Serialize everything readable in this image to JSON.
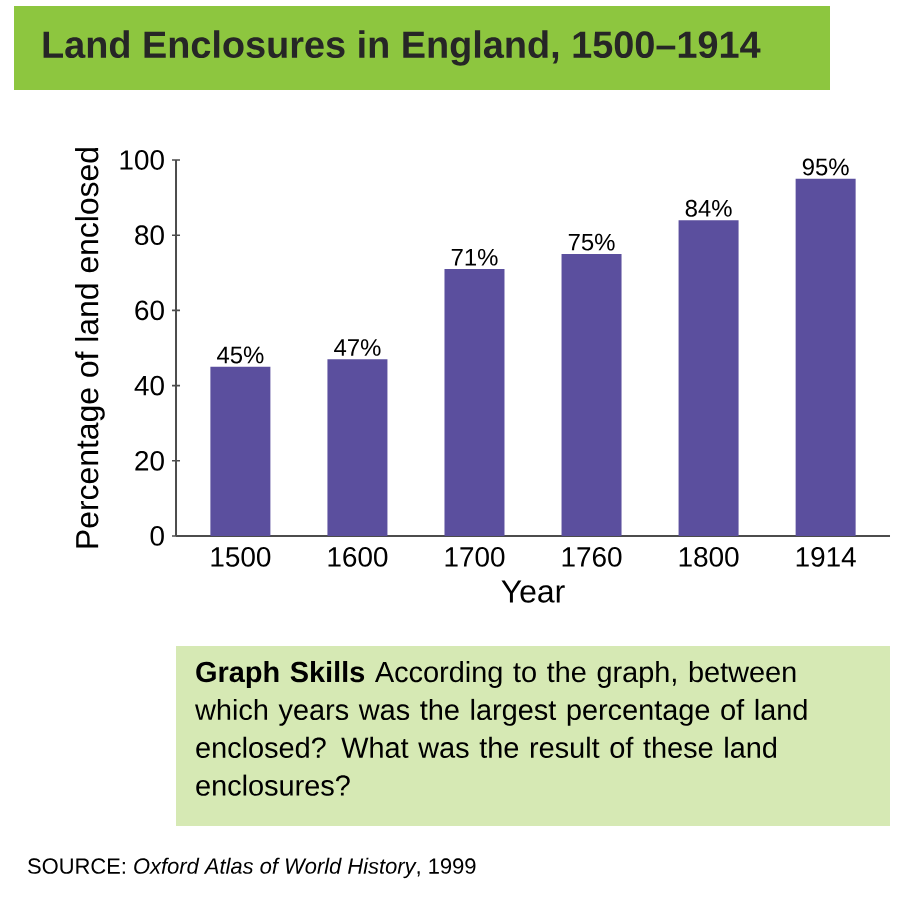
{
  "chart_data": {
    "type": "bar",
    "title": "Land Enclosures in England, 1500–1914",
    "xlabel": "Year",
    "ylabel": "Percentage of land enclosed",
    "categories": [
      "1500",
      "1600",
      "1700",
      "1760",
      "1800",
      "1914"
    ],
    "values": [
      45,
      47,
      71,
      75,
      84,
      95
    ],
    "value_labels": [
      "45%",
      "47%",
      "71%",
      "75%",
      "84%",
      "95%"
    ],
    "color": "#5b4f9e",
    "ylim": [
      0,
      100
    ],
    "yticks": [
      0,
      20,
      40,
      60,
      80,
      100
    ],
    "grid": false,
    "annotations": [
      "**Graph Skills** According to the graph, between which years was the largest percentage of land enclosed? What was the result of these land enclosures?",
      "SOURCE: *Oxford Atlas of World History*, 1999"
    ]
  }
}
